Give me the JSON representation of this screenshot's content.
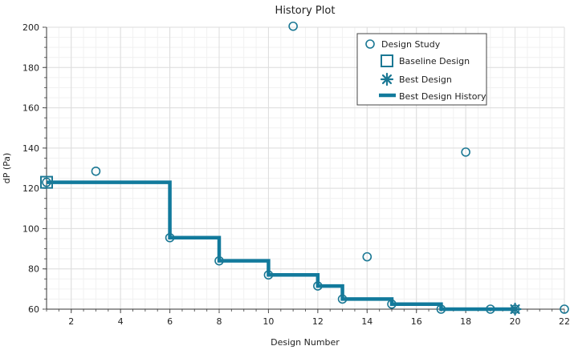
{
  "chart_data": {
    "type": "scatter",
    "title": "History Plot",
    "xlabel": "Design Number",
    "ylabel": "dP (Pa)",
    "xlim": [
      1,
      22
    ],
    "ylim": [
      60,
      200
    ],
    "x_ticks": [
      2,
      4,
      6,
      8,
      10,
      12,
      14,
      16,
      18,
      20,
      22
    ],
    "y_ticks": [
      60,
      80,
      100,
      120,
      140,
      160,
      180,
      200
    ],
    "grid": true,
    "legend_position": "top-right",
    "colors": {
      "series": "#1b7894",
      "history": "#127a9c"
    },
    "series": [
      {
        "name": "Design Study",
        "marker": "circle",
        "points": [
          {
            "x": 1,
            "y": 123
          },
          {
            "x": 3,
            "y": 128.5
          },
          {
            "x": 6,
            "y": 95.5
          },
          {
            "x": 8,
            "y": 84
          },
          {
            "x": 10,
            "y": 77
          },
          {
            "x": 11,
            "y": 200.5
          },
          {
            "x": 12,
            "y": 71.5
          },
          {
            "x": 13,
            "y": 65
          },
          {
            "x": 14,
            "y": 86
          },
          {
            "x": 15,
            "y": 62.5
          },
          {
            "x": 17,
            "y": 60
          },
          {
            "x": 18,
            "y": 138
          },
          {
            "x": 19,
            "y": 60
          },
          {
            "x": 20,
            "y": 60
          },
          {
            "x": 22,
            "y": 60
          }
        ]
      },
      {
        "name": "Baseline Design",
        "marker": "square",
        "points": [
          {
            "x": 1,
            "y": 123
          }
        ]
      },
      {
        "name": "Best Design",
        "marker": "asterisk",
        "points": [
          {
            "x": 20,
            "y": 60
          }
        ]
      },
      {
        "name": "Best Design History",
        "marker": "step-line",
        "points": [
          {
            "x": 1,
            "y": 123
          },
          {
            "x": 6,
            "y": 95.5
          },
          {
            "x": 8,
            "y": 84
          },
          {
            "x": 10,
            "y": 77
          },
          {
            "x": 12,
            "y": 71.5
          },
          {
            "x": 13,
            "y": 65
          },
          {
            "x": 15,
            "y": 62.5
          },
          {
            "x": 17,
            "y": 60
          },
          {
            "x": 20,
            "y": 60
          }
        ]
      }
    ]
  }
}
